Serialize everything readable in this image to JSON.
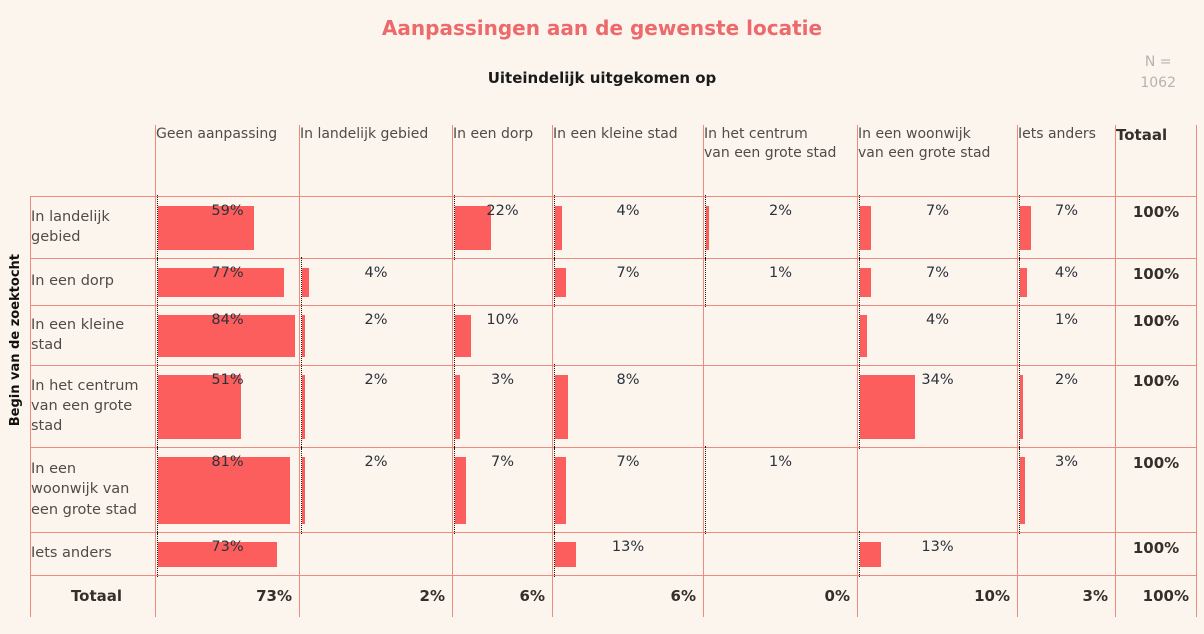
{
  "header": {
    "title": "Aanpassingen aan de gewenste locatie",
    "subtitle": "Uiteindelijk uitgekomen op",
    "n_label": "N =",
    "n_value": "1062"
  },
  "row_axis_label": "Begin van de zoektocht",
  "colors": {
    "background": "#fcf5ee",
    "grid_border": "#ee8a7e",
    "bar": "#fb5e5c",
    "title": "#ed696b",
    "header_text": "#4f4b47",
    "cell_text": "#2c323c",
    "bold_text": "#332f2a",
    "n_text": "#b5b2af"
  },
  "chart_data": {
    "type": "table",
    "title": "Aanpassingen aan de gewenste locatie",
    "column_axis_label": "Uiteindelijk uitgekomen op",
    "row_axis_label": "Begin van de zoektocht",
    "n": 1062,
    "unit": "%",
    "columns": [
      "Geen aanpassing",
      "In landelijk gebied",
      "In een dorp",
      "In een kleine stad",
      "In het centrum\nvan een grote stad",
      "In een woonwijk\nvan een grote stad",
      "Iets anders",
      "Totaal"
    ],
    "rows": [
      {
        "label": "In landelijk\ngebied",
        "values": [
          59,
          null,
          22,
          4,
          2,
          7,
          7
        ],
        "total": "100%"
      },
      {
        "label": "In een dorp",
        "values": [
          77,
          4,
          null,
          7,
          1,
          7,
          4
        ],
        "total": "100%"
      },
      {
        "label": "In een kleine\nstad",
        "values": [
          84,
          2,
          10,
          null,
          null,
          4,
          1
        ],
        "total": "100%"
      },
      {
        "label": "In het centrum\nvan een grote\nstad",
        "values": [
          51,
          2,
          3,
          8,
          null,
          34,
          2
        ],
        "total": "100%"
      },
      {
        "label": "In een\nwoonwijk van\neen grote stad",
        "values": [
          81,
          2,
          7,
          7,
          1,
          null,
          3
        ],
        "total": "100%"
      },
      {
        "label": "Iets anders",
        "values": [
          73,
          null,
          null,
          13,
          null,
          13,
          null
        ],
        "total": "100%"
      }
    ],
    "totals_row": {
      "label": "Totaal",
      "values": [
        73,
        2,
        6,
        6,
        0,
        10,
        3
      ],
      "total": "100%"
    }
  }
}
